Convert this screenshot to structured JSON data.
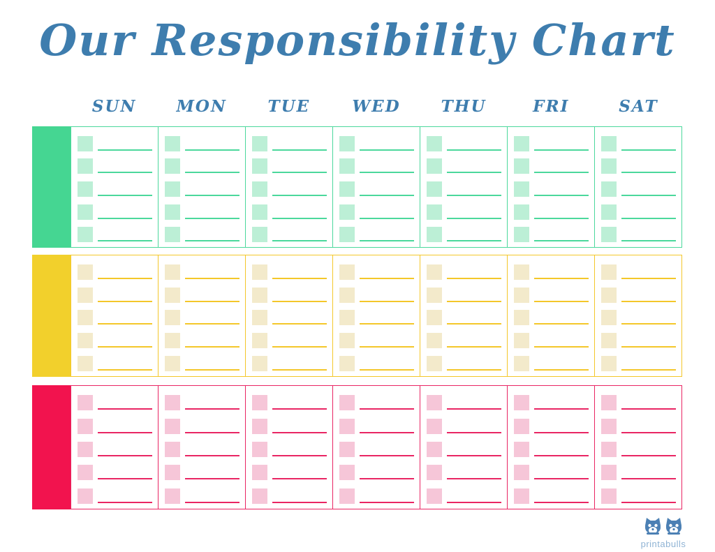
{
  "title": {
    "text": "Our Responsibility Chart",
    "color": "#3E7DAE"
  },
  "day_headers": {
    "labels": [
      "SUN",
      "MON",
      "TUE",
      "WED",
      "THU",
      "FRI",
      "SAT"
    ],
    "color": "#3E7DAE"
  },
  "chart": {
    "rows_per_day": 5,
    "columns_per_section": 7,
    "sections": [
      {
        "name": "green-row",
        "block_color": "#45D692",
        "border_color": "#4BD89C",
        "line_color": "#4BD89C",
        "checkbox_color": "#BCEFD6"
      },
      {
        "name": "yellow-row",
        "block_color": "#F2D02C",
        "border_color": "#F4C72A",
        "line_color": "#F4C72A",
        "checkbox_color": "#F3EACB"
      },
      {
        "name": "pink-row",
        "block_color": "#F2134E",
        "border_color": "#E92563",
        "line_color": "#E92563",
        "checkbox_color": "#F6C6D8"
      }
    ]
  },
  "logo": {
    "text": "printabulls",
    "icon": "two-bulldogs-icon",
    "icon_color": "#4C80B4",
    "text_color": "#8FB3D4"
  }
}
